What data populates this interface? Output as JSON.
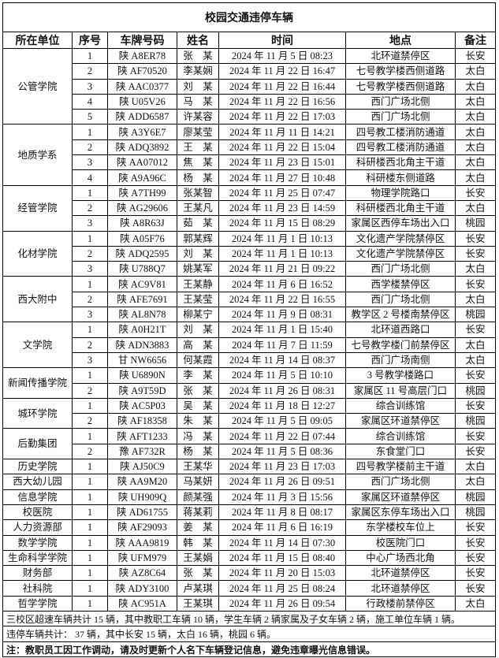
{
  "title": "校园交通违停车辆",
  "headers": [
    "所在单位",
    "序号",
    "车牌号码",
    "姓名",
    "时间",
    "地点",
    "备注"
  ],
  "groups": [
    {
      "unit": "公管学院",
      "rows": [
        [
          "1",
          "陕 A8ER78",
          "张　某",
          "2024 年 11 月 5 日  08:23",
          "北环道禁停区",
          "长安"
        ],
        [
          "2",
          "陕 AF70520",
          "李某娴",
          "2024 年 11 月 22 日 16:47",
          "七号教学楼西侧道路",
          "太白"
        ],
        [
          "3",
          "陕 AAC0377",
          "刘　某",
          "2024 年 11 月 22 日 16:44",
          "七号教学楼西侧道路",
          "太白"
        ],
        [
          "4",
          "陕 U05V26",
          "马　某",
          "2024 年 11 月 22 日 16:56",
          "西门广场北侧",
          "太白"
        ],
        [
          "5",
          "陕 ADD6587",
          "许某容",
          "2024 年 11 月 22 日 17:03",
          "西门广场北侧",
          "太白"
        ]
      ]
    },
    {
      "unit": "地质学系",
      "rows": [
        [
          "1",
          "陕 A3Y6E7",
          "廖某莹",
          "2024 年 11 月 11 日 14:21",
          "四号教工楼消防通道",
          "太白"
        ],
        [
          "2",
          "陕 ADQ3892",
          "王　某",
          "2024 年 11 月 22 日 15:04",
          "四号教工楼消防通道",
          "太白"
        ],
        [
          "3",
          "陕 AA07012",
          "焦　某",
          "2024 年 11 月 23 日 15:01",
          "科研楼西北角主干道",
          "太白"
        ],
        [
          "4",
          "陕 A9A96C",
          "杨　某",
          "2024 年 11 月 27 日 10:48",
          "科研楼东侧道路",
          "太白"
        ]
      ]
    },
    {
      "unit": "经管学院",
      "rows": [
        [
          "1",
          "陕 A7TH99",
          "张某智",
          "2024 年 11 月 25 日  07:47",
          "物理学院路口",
          "长安"
        ],
        [
          "2",
          "陕 AG29606",
          "王某凡",
          "2024 年 11 月 23 日 14:59",
          "科研楼西北角主干道",
          "太白"
        ],
        [
          "3",
          "陕 A8R63J",
          "茹　某",
          "2024 年 11 月 15 日 08:29",
          "家属区西停车场出入口",
          "桃园"
        ]
      ]
    },
    {
      "unit": "化材学院",
      "rows": [
        [
          "1",
          "陕 A05F76",
          "郭某辉",
          "2024 年 11 月 1 日  10:13",
          "文化遗产学院禁停区",
          "长安"
        ],
        [
          "2",
          "陕 ADQ2595",
          "刘　某",
          "2024 年 11 月 1 日  10:13",
          "文化遗产学院禁停区",
          "长安"
        ],
        [
          "3",
          "陕 U788Q7",
          "姚某军",
          "2024 年 11 月 21 日 09:22",
          "西门广场北侧",
          "太白"
        ]
      ]
    },
    {
      "unit": "西大附中",
      "rows": [
        [
          "1",
          "陕 AC9V81",
          "王某静",
          "2024 年 11 月 6 日  16:52",
          "西学楼禁停区",
          "长安"
        ],
        [
          "2",
          "陕 AFE7691",
          "王某莹",
          "2024 年 11 月 22 日 16:55",
          "西门广场北侧",
          "太白"
        ],
        [
          "3",
          "陕 AL8N78",
          "柳某宁",
          "2024 年 11 月 9 日 08:31",
          "教学区 2 号楼南禁停区",
          "桃园"
        ]
      ]
    },
    {
      "unit": "文学院",
      "rows": [
        [
          "1",
          "陕 A0H21T",
          "刘　某",
          "2024 年 11 月 1 日  15:40",
          "北环道西路口",
          "长安"
        ],
        [
          "2",
          "陕 ADN3883",
          "高　某",
          "2024 年 11 月 7 日 11:59",
          "七号教学楼门前禁停区",
          "太白"
        ],
        [
          "3",
          "甘 NW6656",
          "何某霞",
          "2024 年 11 月 14 日 08:37",
          "西门广场南侧",
          "太白"
        ]
      ]
    },
    {
      "unit": "新闻传播学院",
      "rows": [
        [
          "1",
          "陕 U6890N",
          "李　某",
          "2024 年 11 月 5 日  10:10",
          "3 号教学楼路口",
          "长安"
        ],
        [
          "2",
          "陕 A9T59D",
          "张　某",
          "2024 年 11 月 26 日 08:31",
          "家属区 11 号高层门口",
          "桃园"
        ]
      ]
    },
    {
      "unit": "城环学院",
      "rows": [
        [
          "1",
          "陕 AC5P03",
          "吴　某",
          "2024 年 11 月 18 日  12:27",
          "综合训练馆",
          "长安"
        ],
        [
          "2",
          "陕 AF18358",
          "朱　某",
          "2024 年 11 月 5 日 09:05",
          "家属区环道禁停区",
          "桃园"
        ]
      ]
    },
    {
      "unit": "后勤集团",
      "rows": [
        [
          "1",
          "陕 AFT1233",
          "冯　某",
          "2024 年 11 月 22 日  07:44",
          "综合训练馆",
          "长安"
        ],
        [
          "2",
          "豫 AF732R",
          "杨　某",
          "2024 年 11 月 5 日  08:36",
          "东食堂门口",
          "长安"
        ]
      ]
    },
    {
      "unit": "历史学院",
      "rows": [
        [
          "1",
          "陕 AJ50C9",
          "王某华",
          "2024 年 11 月 23 日 17:03",
          "四号教学楼前主干道",
          "太白"
        ]
      ]
    },
    {
      "unit": "西大幼儿园",
      "rows": [
        [
          "1",
          "陕 AA9M20",
          "马某妍",
          "2024 年 11 月 26 日 09:51",
          "西门广场北侧",
          "太白"
        ]
      ]
    },
    {
      "unit": "信息学院",
      "rows": [
        [
          "1",
          "陕 UH909Q",
          "颜某强",
          "2024 年 11 月 3 日 15:56",
          "家属区环道禁停区",
          "桃园"
        ]
      ]
    },
    {
      "unit": "校医院",
      "rows": [
        [
          "1",
          "陕 AD61755",
          "蒋某莉",
          "2024 年 11 月 8 日 08:17",
          "家属区东停车场出入口",
          "桃园"
        ]
      ]
    },
    {
      "unit": "人力资源部",
      "rows": [
        [
          "1",
          "陕 AF29093",
          "姜　某",
          "2024 年 11 月 6 日  16:19",
          "东学楼校车位上",
          "长安"
        ]
      ]
    },
    {
      "unit": "数学学院",
      "rows": [
        [
          "1",
          "陕 AAA9819",
          "韩　某",
          "2024 年 11 月 14 日  07:30",
          "校医院门口",
          "长安"
        ]
      ]
    },
    {
      "unit": "生命科学学院",
      "rows": [
        [
          "1",
          "陕 UFM979",
          "王某娟",
          "2024 年 11 月 15 日  08:40",
          "中心广场西北角",
          "长安"
        ]
      ]
    },
    {
      "unit": "财务部",
      "rows": [
        [
          "1",
          "陕 AZ8C64",
          "张　某",
          "2024 年 11 月 20 日  15:03",
          "北环道禁停区",
          "长安"
        ]
      ]
    },
    {
      "unit": "社科院",
      "rows": [
        [
          "1",
          "陕 ADY3100",
          "卢某琪",
          "2024 年 11 月 25 日  08:24",
          "北环道禁停区",
          "长安"
        ]
      ]
    },
    {
      "unit": "哲学学院",
      "rows": [
        [
          "1",
          "陕 AC951A",
          "王某琪",
          "2024 年 11 月 26 日 09:54",
          "行政楼前禁停区",
          "太白"
        ]
      ]
    }
  ],
  "footer": {
    "speeding_summary": "三校区超速车辆共计 15 辆，其中教职工车辆 10 辆，学生车辆 2 辆家属及子女车辆 2 辆，施工单位车辆 1 辆。",
    "parking_summary": "违停车辆共计：  37 辆，其中长安 15 辆，太白 16 辆，桃园 6 辆。",
    "note": "注：教职员工因工作调动，请及时更新个人名下车辆登记信息，避免违章曝光信息错误。"
  }
}
